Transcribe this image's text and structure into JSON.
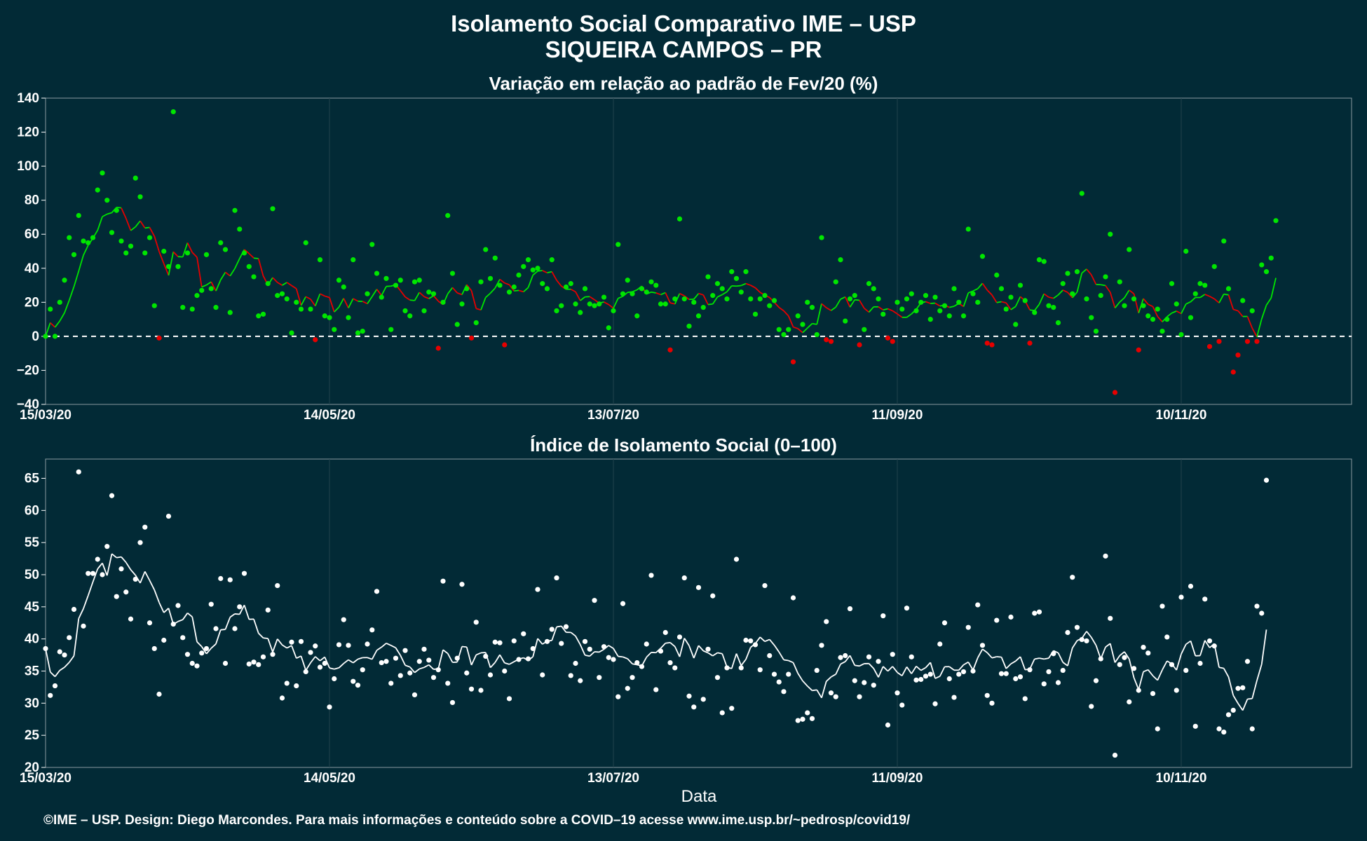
{
  "header": {
    "title": "Isolamento Social Comparativo IME – USP",
    "subtitle": "SIQUEIRA CAMPOS – PR"
  },
  "xlabel": "Data",
  "footer": "©IME – USP. Design: Diego Marcondes. Para mais informações e conteúdo sobre a COVID–19 acesse www.ime.usp.br/~pedrosp/covid19/",
  "colors": {
    "background": "#022a36",
    "positive": "#00e600",
    "negative": "#e60000",
    "index_points": "#ffffff",
    "grid": "#21424c"
  },
  "chart_data": [
    {
      "type": "scatter",
      "title": "Variação em relação ao padrão de Fev/20 (%)",
      "x_start": "2020-03-15",
      "x_ticks": [
        "15/03/20",
        "14/05/20",
        "13/07/20",
        "11/09/20",
        "10/11/20"
      ],
      "xlim": [
        "2020-03-15",
        "2020-12-16"
      ],
      "ylim": [
        -40,
        140
      ],
      "y_ticks": [
        -40,
        -20,
        0,
        20,
        40,
        60,
        80,
        100,
        120,
        140
      ],
      "reference_line": 0,
      "grid": true,
      "values": [
        0,
        16,
        0,
        20,
        33,
        58,
        48,
        71,
        56,
        55,
        58,
        86,
        96,
        80,
        61,
        74,
        56,
        49,
        53,
        93,
        82,
        49,
        58,
        18,
        -1,
        50,
        41,
        132,
        41,
        17,
        49,
        16,
        24,
        27,
        48,
        28,
        17,
        55,
        51,
        14,
        74,
        63,
        49,
        41,
        35,
        12,
        13,
        31,
        75,
        24,
        25,
        22,
        2,
        20,
        16,
        55,
        16,
        -2,
        45,
        12,
        11,
        4,
        33,
        29,
        11,
        45,
        2,
        3,
        25,
        54,
        37,
        23,
        34,
        4,
        30,
        33,
        15,
        12,
        32,
        33,
        15,
        26,
        25,
        -7,
        20,
        71,
        37,
        7,
        19,
        28,
        -1,
        8,
        32,
        51,
        34,
        46,
        30,
        -5,
        26,
        29,
        36,
        41,
        45,
        39,
        40,
        31,
        28,
        45,
        15,
        18,
        29,
        31,
        19,
        14,
        28,
        19,
        18,
        19,
        23,
        5,
        15,
        54,
        25,
        33,
        25,
        12,
        28,
        26,
        32,
        30,
        19,
        19,
        -8,
        22,
        69,
        22,
        6,
        20,
        12,
        17,
        35,
        24,
        31,
        28,
        22,
        38,
        34,
        26,
        38,
        22,
        13,
        22,
        24,
        18,
        21,
        4,
        1,
        4,
        -15,
        12,
        7,
        20,
        17,
        1,
        58,
        -2,
        -3,
        32,
        45,
        9,
        22,
        24,
        -5,
        4,
        31,
        28,
        22,
        13,
        -1,
        -3,
        20,
        16,
        22,
        25,
        15,
        20,
        24,
        10,
        23,
        15,
        18,
        12,
        28,
        20,
        12,
        63,
        25,
        20,
        47,
        -4,
        -5,
        36,
        28,
        16,
        23,
        7,
        30,
        21,
        -4,
        14,
        45,
        44,
        18,
        17,
        8,
        31,
        37,
        25,
        38,
        84,
        22,
        11,
        3,
        24,
        35,
        60,
        -33,
        32,
        18,
        51,
        22,
        -8,
        18,
        12,
        10,
        16,
        3,
        10,
        31,
        19,
        1,
        50,
        11,
        25,
        31,
        30,
        -6,
        41,
        -3,
        56,
        28,
        -21,
        -11,
        21,
        -3,
        15,
        -3,
        42,
        38,
        46,
        68
      ]
    },
    {
      "type": "scatter",
      "title": "Índice de Isolamento Social (0–100)",
      "x_start": "2020-03-15",
      "x_ticks": [
        "15/03/20",
        "14/05/20",
        "13/07/20",
        "11/09/20",
        "10/11/20"
      ],
      "xlim": [
        "2020-03-15",
        "2020-12-16"
      ],
      "ylim": [
        20,
        68
      ],
      "y_ticks": [
        20,
        25,
        30,
        35,
        40,
        45,
        50,
        55,
        60,
        65
      ],
      "grid": true,
      "values": [
        38.5,
        31.2,
        32.7,
        38.0,
        37.5,
        40.2,
        44.6,
        66.0,
        42.0,
        50.2,
        50.2,
        52.4,
        50.0,
        54.4,
        62.3,
        46.6,
        50.9,
        47.3,
        43.1,
        49.3,
        55.0,
        57.4,
        42.5,
        38.5,
        31.4,
        39.8,
        59.1,
        42.3,
        45.2,
        40.2,
        37.6,
        36.2,
        35.8,
        37.8,
        38.5,
        45.4,
        41.6,
        49.4,
        36.2,
        49.2,
        41.6,
        45.0,
        50.2,
        36.1,
        36.4,
        36.0,
        37.2,
        44.5,
        37.6,
        48.3,
        30.8,
        33.1,
        39.5,
        32.7,
        39.6,
        34.9,
        37.9,
        38.9,
        35.6,
        36.2,
        29.4,
        33.8,
        39.1,
        43.0,
        39.0,
        33.4,
        32.8,
        35.2,
        39.2,
        41.4,
        47.4,
        36.3,
        36.5,
        33.1,
        37.0,
        34.3,
        38.2,
        34.7,
        31.3,
        36.5,
        38.4,
        36.7,
        34.0,
        35.2,
        49.0,
        33.1,
        30.1,
        37.0,
        48.5,
        34.7,
        32.2,
        42.6,
        32.0,
        37.3,
        34.4,
        39.5,
        39.4,
        35.0,
        30.7,
        39.7,
        36.8,
        40.8,
        36.9,
        38.5,
        47.7,
        34.4,
        39.6,
        41.5,
        49.5,
        39.3,
        41.9,
        34.3,
        36.2,
        33.5,
        39.6,
        38.4,
        46.0,
        34.0,
        38.8,
        37.1,
        36.8,
        31.0,
        45.5,
        32.3,
        34.0,
        36.3,
        35.7,
        39.2,
        49.9,
        32.1,
        38.1,
        41.0,
        36.3,
        35.5,
        40.3,
        49.5,
        31.1,
        29.4,
        48.0,
        30.6,
        38.4,
        46.7,
        34.0,
        28.5,
        35.5,
        29.2,
        52.4,
        35.5,
        39.8,
        39.7,
        39.1,
        35.2,
        48.3,
        37.4,
        34.5,
        33.3,
        31.8,
        34.5,
        46.4,
        27.3,
        27.5,
        28.5,
        27.6,
        35.1,
        39.0,
        42.7,
        31.6,
        31.0,
        37.1,
        37.4,
        44.7,
        33.5,
        31.0,
        33.2,
        37.2,
        32.8,
        36.5,
        43.6,
        26.6,
        37.6,
        31.6,
        29.7,
        44.8,
        37.2,
        33.6,
        33.7,
        34.2,
        34.5,
        29.9,
        39.2,
        42.5,
        33.8,
        30.9,
        34.5,
        34.9,
        41.8,
        35.0,
        45.3,
        39.0,
        31.2,
        30.0,
        42.9,
        34.6,
        34.6,
        43.4,
        33.8,
        34.1,
        30.7,
        35.2,
        44.0,
        44.2,
        33.0,
        34.9,
        37.7,
        33.2,
        35.1,
        41.0,
        49.6,
        41.8,
        39.9,
        39.7,
        29.5,
        33.5,
        36.9,
        52.9,
        43.2,
        21.9,
        36.0,
        37.1,
        30.2,
        35.4,
        32.0,
        38.7,
        37.8,
        31.5,
        26.0,
        45.1,
        40.3,
        36.0,
        32.0,
        46.5,
        35.1,
        48.2,
        26.4,
        36.2,
        46.2,
        39.7,
        38.9,
        26.0,
        25.5,
        28.2,
        28.9,
        32.3,
        32.4,
        36.5,
        26.0,
        45.1,
        44.0,
        64.7
      ]
    }
  ]
}
